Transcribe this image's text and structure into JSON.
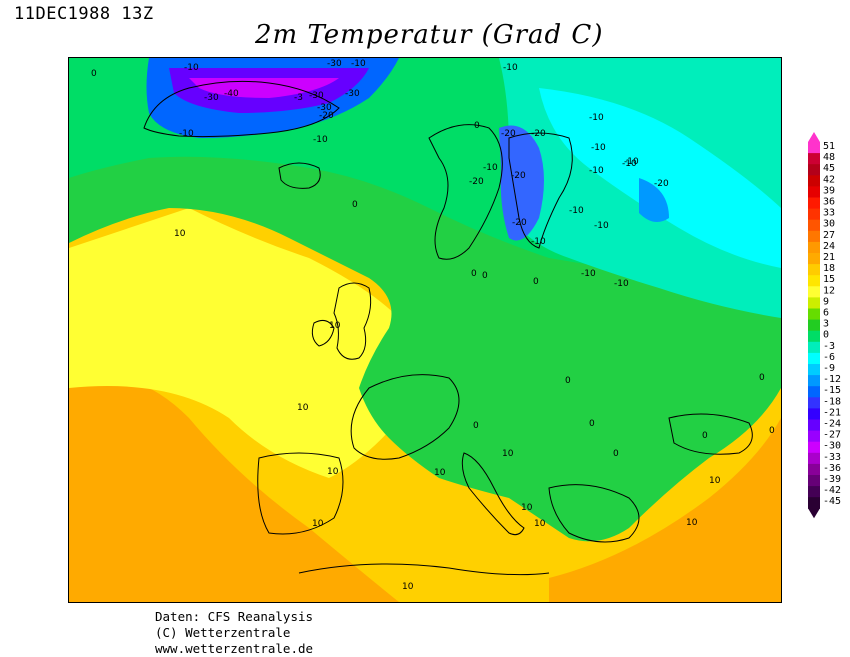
{
  "header": {
    "datetime": "11DEC1988 13Z",
    "title": "2m Temperatur (Grad C)"
  },
  "footer": {
    "line1": "Daten: CFS Reanalysis",
    "line2": "(C) Wetterzentrale",
    "line3": "www.wetterzentrale.de"
  },
  "map": {
    "region": "Europe",
    "contour_labels": [
      "0",
      "-10",
      "-30",
      "-10",
      "-10",
      "-30",
      "-40",
      "-3",
      "-30",
      "-30",
      "-20",
      "-10",
      "-30",
      "-10",
      "-10",
      "-20",
      "-20",
      "-10",
      "-10",
      "-20",
      "-20",
      "-20",
      "-10",
      "-10",
      "-20",
      "-10",
      "-10",
      "-10",
      "-10",
      "-10",
      "-10",
      "10",
      "0",
      "0",
      "0",
      "0",
      "0",
      "0",
      "10",
      "10",
      "10",
      "0",
      "0",
      "10",
      "0",
      "0",
      "10",
      "10",
      "10",
      "10",
      "0",
      "10",
      "10",
      "10",
      "0"
    ]
  },
  "legend": {
    "values": [
      "51",
      "48",
      "45",
      "42",
      "39",
      "36",
      "33",
      "30",
      "27",
      "24",
      "21",
      "18",
      "15",
      "12",
      "9",
      "6",
      "3",
      "0",
      "-3",
      "-6",
      "-9",
      "-12",
      "-15",
      "-18",
      "-21",
      "-24",
      "-27",
      "-30",
      "-33",
      "-36",
      "-39",
      "-42",
      "-45"
    ],
    "colors": [
      "#ff33cc",
      "#cc0033",
      "#b3001a",
      "#cc0000",
      "#e60000",
      "#ff1a00",
      "#ff3300",
      "#ff5500",
      "#ff7700",
      "#ff9900",
      "#ffaa00",
      "#ffcc00",
      "#ffe600",
      "#ffff33",
      "#ccee00",
      "#66dd00",
      "#22cc22",
      "#00dd66",
      "#00eebb",
      "#00ffff",
      "#00ccff",
      "#0099ff",
      "#0066ff",
      "#3333ff",
      "#3300ff",
      "#6600ff",
      "#9900ff",
      "#cc00ff",
      "#aa00cc",
      "#880099",
      "#660077",
      "#440055",
      "#2a0033"
    ]
  }
}
